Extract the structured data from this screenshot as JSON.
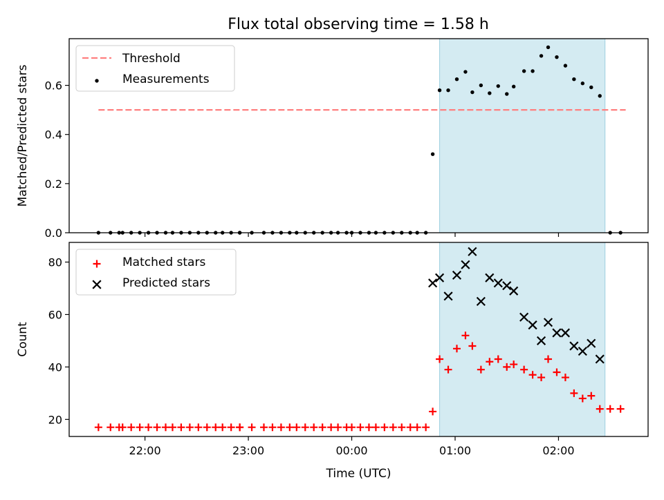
{
  "figure": {
    "title": "Flux total observing time = 1.58 h"
  },
  "colors": {
    "threshold": "#ff7f7f",
    "measurement": "#000000",
    "matched": "#ff0000",
    "predicted": "#000000",
    "highlight_fill": "#add8e6",
    "highlight_edge": "#9dcfe0"
  },
  "chart_data": [
    {
      "type": "scatter",
      "ylabel": "Matched/Predicted stars",
      "ylim": [
        0,
        0.79
      ],
      "yticks": [
        0.0,
        0.2,
        0.4,
        0.6
      ],
      "ytick_labels": [
        "0.0",
        "0.2",
        "0.4",
        "0.6"
      ],
      "xlim": [
        "21:16",
        "02:52"
      ],
      "show_xtick_labels": false,
      "highlight_span": [
        "00:51",
        "02:27"
      ],
      "legend": {
        "position": "top-left",
        "entries": [
          {
            "label": "Threshold",
            "marker": "dashed-line"
          },
          {
            "label": "Measurements",
            "marker": "dot"
          }
        ]
      },
      "series": [
        {
          "name": "Threshold",
          "kind": "line",
          "x": [
            "21:33",
            "02:39"
          ],
          "y": [
            0.5,
            0.5
          ]
        },
        {
          "name": "Measurements",
          "kind": "scatter",
          "x": [
            "21:33",
            "21:40",
            "21:45",
            "21:47",
            "21:52",
            "21:57",
            "22:02",
            "22:07",
            "22:12",
            "22:16",
            "22:21",
            "22:26",
            "22:31",
            "22:36",
            "22:41",
            "22:45",
            "22:50",
            "22:55",
            "22:55",
            "23:02",
            "23:09",
            "23:14",
            "23:19",
            "23:24",
            "23:28",
            "23:33",
            "23:38",
            "23:43",
            "23:48",
            "23:52",
            "23:57",
            "00:00",
            "00:05",
            "00:10",
            "00:14",
            "00:19",
            "00:24",
            "00:29",
            "00:34",
            "00:38",
            "00:43",
            "00:47",
            "00:51",
            "00:56",
            "01:01",
            "01:06",
            "01:10",
            "01:15",
            "01:20",
            "01:25",
            "01:30",
            "01:34",
            "01:40",
            "01:45",
            "01:50",
            "01:54",
            "01:59",
            "02:04",
            "02:09",
            "02:14",
            "02:19",
            "02:24",
            "02:30",
            "02:36"
          ],
          "y": [
            0,
            0,
            0,
            0,
            0,
            0,
            0,
            0,
            0,
            0,
            0,
            0,
            0,
            0,
            0,
            0,
            0,
            0,
            0,
            0,
            0,
            0,
            0,
            0,
            0,
            0,
            0,
            0,
            0,
            0,
            0,
            0,
            0,
            0,
            0,
            0,
            0,
            0,
            0,
            0,
            0,
            0.32,
            0.58,
            0.58,
            0.625,
            0.655,
            0.572,
            0.6,
            0.568,
            0.597,
            0.565,
            0.595,
            0.658,
            0.658,
            0.72,
            0.755,
            0.715,
            0.68,
            0.625,
            0.608,
            0.592,
            0.557,
            0,
            0
          ]
        }
      ]
    },
    {
      "type": "scatter",
      "ylabel": "Count",
      "xlabel": "Time (UTC)",
      "ylim": [
        13.5,
        87.5
      ],
      "yticks": [
        20,
        40,
        60,
        80
      ],
      "ytick_labels": [
        "20",
        "40",
        "60",
        "80"
      ],
      "xlim": [
        "21:16",
        "02:52"
      ],
      "xticks": [
        "22:00",
        "23:00",
        "00:00",
        "01:00",
        "02:00"
      ],
      "xtick_labels": [
        "22:00",
        "23:00",
        "00:00",
        "01:00",
        "02:00"
      ],
      "highlight_span": [
        "00:51",
        "02:27"
      ],
      "legend": {
        "position": "top-left",
        "entries": [
          {
            "label": "Matched stars",
            "marker": "plus"
          },
          {
            "label": "Predicted stars",
            "marker": "x"
          }
        ]
      },
      "series": [
        {
          "name": "Matched stars",
          "kind": "plus",
          "x": [
            "21:33",
            "21:40",
            "21:45",
            "21:47",
            "21:52",
            "21:57",
            "22:02",
            "22:07",
            "22:12",
            "22:16",
            "22:21",
            "22:26",
            "22:31",
            "22:36",
            "22:41",
            "22:45",
            "22:50",
            "22:55",
            "22:55",
            "23:02",
            "23:09",
            "23:14",
            "23:19",
            "23:24",
            "23:28",
            "23:33",
            "23:38",
            "23:43",
            "23:48",
            "23:52",
            "23:57",
            "00:00",
            "00:05",
            "00:10",
            "00:14",
            "00:19",
            "00:24",
            "00:29",
            "00:34",
            "00:38",
            "00:43",
            "00:47",
            "00:51",
            "00:56",
            "01:01",
            "01:06",
            "01:10",
            "01:15",
            "01:20",
            "01:25",
            "01:30",
            "01:34",
            "01:40",
            "01:45",
            "01:50",
            "01:54",
            "01:59",
            "02:04",
            "02:09",
            "02:14",
            "02:19",
            "02:24",
            "02:30",
            "02:36"
          ],
          "y": [
            17,
            17,
            17,
            17,
            17,
            17,
            17,
            17,
            17,
            17,
            17,
            17,
            17,
            17,
            17,
            17,
            17,
            17,
            17,
            17,
            17,
            17,
            17,
            17,
            17,
            17,
            17,
            17,
            17,
            17,
            17,
            17,
            17,
            17,
            17,
            17,
            17,
            17,
            17,
            17,
            17,
            23,
            43,
            39,
            47,
            52,
            48,
            39,
            42,
            43,
            40,
            41,
            39,
            37,
            36,
            43,
            38,
            36,
            30,
            28,
            29,
            24,
            24,
            24
          ]
        },
        {
          "name": "Predicted stars",
          "kind": "x",
          "x": [
            "00:47",
            "00:51",
            "00:56",
            "01:01",
            "01:06",
            "01:10",
            "01:15",
            "01:20",
            "01:25",
            "01:30",
            "01:34",
            "01:40",
            "01:45",
            "01:50",
            "01:54",
            "01:59",
            "02:04",
            "02:09",
            "02:14",
            "02:19",
            "02:24"
          ],
          "y": [
            72,
            74,
            67,
            75,
            79,
            84,
            65,
            74,
            72,
            71,
            69,
            59,
            56,
            50,
            57,
            53,
            53,
            48,
            46,
            49,
            43
          ]
        }
      ]
    }
  ]
}
